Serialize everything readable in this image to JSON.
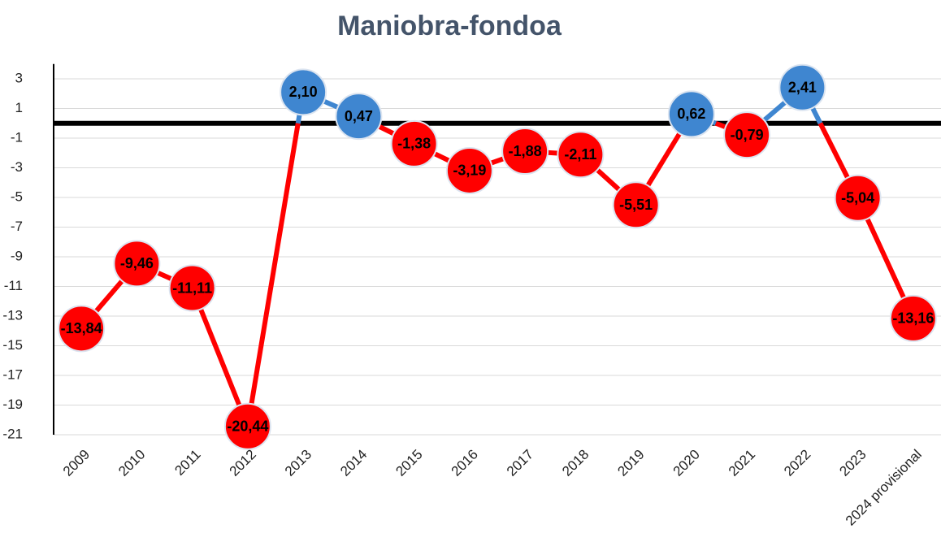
{
  "chart_data": {
    "type": "line",
    "title": "Maniobra-fondoa",
    "categories": [
      "2009",
      "2010",
      "2011",
      "2012",
      "2013",
      "2014",
      "2015",
      "2016",
      "2017",
      "2018",
      "2019",
      "2020",
      "2021",
      "2022",
      "2023",
      "2024 provisional"
    ],
    "values": [
      -13.84,
      -9.46,
      -11.11,
      -20.44,
      2.1,
      0.47,
      -1.38,
      -3.19,
      -1.88,
      -2.11,
      -5.51,
      0.62,
      -0.79,
      2.41,
      -5.04,
      -13.16
    ],
    "value_labels": [
      "-13,84",
      "-9,46",
      "-11,11",
      "-20,44",
      "2,10",
      "0,47",
      "-1,38",
      "-3,19",
      "-1,88",
      "-2,11",
      "-5,51",
      "0,62",
      "-0,79",
      "2,41",
      "-5,04",
      "-13,16"
    ],
    "positive_color": "#3f86d0",
    "negative_color": "#ff0000",
    "ylim": [
      -21,
      4
    ],
    "yticks": [
      -21,
      -19,
      -17,
      -15,
      -13,
      -11,
      -9,
      -7,
      -5,
      -3,
      -1,
      1,
      3
    ],
    "grid": true
  }
}
